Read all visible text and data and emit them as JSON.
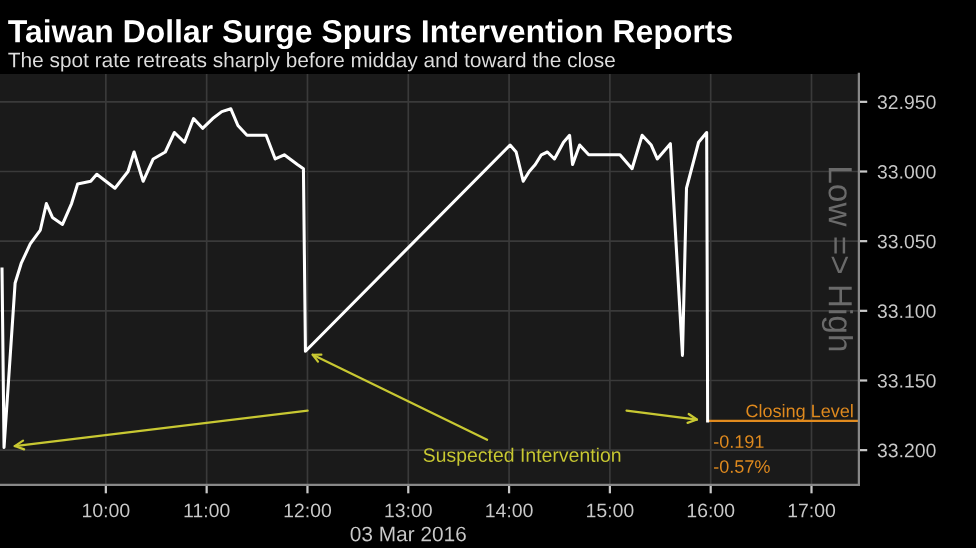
{
  "chart_data": {
    "type": "line",
    "title": "Taiwan Dollar Surge Spurs Intervention Reports",
    "subtitle": "The spot rate retreats sharply before midday and toward the close",
    "xlabel": "03 Mar 2016",
    "ylabel": "Low => High",
    "x": [
      8.97,
      8.99,
      9.1,
      9.16,
      9.25,
      9.35,
      9.41,
      9.47,
      9.57,
      9.66,
      9.72,
      9.85,
      9.91,
      10.09,
      10.22,
      10.28,
      10.37,
      10.47,
      10.59,
      10.68,
      10.78,
      10.87,
      10.96,
      11.06,
      11.15,
      11.24,
      11.31,
      11.4,
      11.59,
      11.68,
      11.77,
      11.9,
      11.96,
      11.98,
      14.01,
      14.07,
      14.14,
      14.2,
      14.26,
      14.32,
      14.38,
      14.45,
      14.54,
      14.6,
      14.63,
      14.7,
      14.79,
      14.94,
      15.1,
      15.22,
      15.32,
      15.41,
      15.47,
      15.6,
      15.72,
      15.76,
      15.88,
      15.96,
      15.965,
      15.97
    ],
    "series": [
      {
        "color": "#ffffff",
        "values": [
          33.07,
          33.198,
          33.08,
          33.066,
          33.052,
          33.042,
          33.023,
          33.033,
          33.038,
          33.023,
          33.009,
          33.007,
          33.002,
          33.012,
          33.0,
          32.986,
          33.007,
          32.991,
          32.986,
          32.972,
          32.979,
          32.962,
          32.969,
          32.962,
          32.957,
          32.955,
          32.967,
          32.974,
          32.974,
          32.991,
          32.988,
          32.995,
          32.998,
          33.129,
          32.981,
          32.986,
          33.007,
          33.0,
          32.995,
          32.988,
          32.986,
          32.991,
          32.979,
          32.974,
          32.995,
          32.981,
          32.988,
          32.988,
          32.988,
          32.998,
          32.974,
          32.981,
          32.991,
          32.98,
          33.132,
          33.012,
          32.979,
          32.972,
          33.066,
          33.179
        ]
      }
    ],
    "xlim": [
      8.95,
      17.47
    ],
    "ylim": [
      33.225,
      32.93
    ],
    "xticks": [
      {
        "value": 10,
        "label": "10:00"
      },
      {
        "value": 11,
        "label": "11:00"
      },
      {
        "value": 12,
        "label": "12:00"
      },
      {
        "value": 13,
        "label": "13:00"
      },
      {
        "value": 14,
        "label": "14:00"
      },
      {
        "value": 15,
        "label": "15:00"
      },
      {
        "value": 16,
        "label": "16:00"
      },
      {
        "value": 17,
        "label": "17:00"
      }
    ],
    "yticks": [
      {
        "value": 32.95,
        "label": "32.950"
      },
      {
        "value": 33.0,
        "label": "33.000"
      },
      {
        "value": 33.05,
        "label": "33.050"
      },
      {
        "value": 33.1,
        "label": "33.100"
      },
      {
        "value": 33.15,
        "label": "33.150"
      },
      {
        "value": 33.2,
        "label": "33.200"
      }
    ],
    "ref_lines": [
      {
        "axis": "y",
        "value": 33.179,
        "label": "Closing Level",
        "color": "#e08a1e"
      }
    ],
    "annotations": [
      {
        "text": "Suspected Intervention",
        "x": 11.98,
        "y": 33.129
      },
      "-0.191",
      "-0.57%"
    ],
    "grid": true,
    "legend": false,
    "marker": "none",
    "line_style": "solid"
  }
}
